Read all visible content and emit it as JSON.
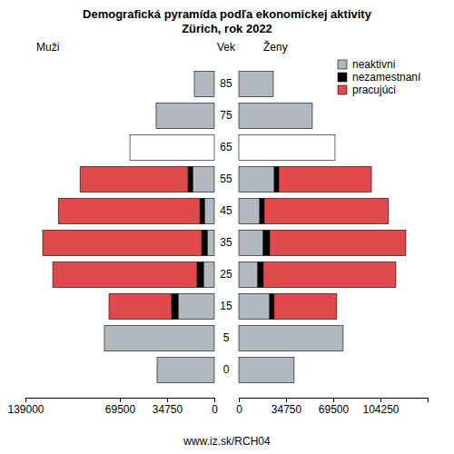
{
  "chart_data": {
    "type": "bar",
    "orientation": "horizontal",
    "stacked": true,
    "title": "Demografická pyramída podľa ekonomickej aktivity",
    "subtitle": "Zürich, rok 2022",
    "y_label": "Vek",
    "left_label": "Muži",
    "right_label": "Ženy",
    "footer": "www.iz.sk/RCH04",
    "legend": "top-right",
    "categories": [
      "0",
      "5",
      "15",
      "25",
      "35",
      "45",
      "55",
      "65",
      "75",
      "85"
    ],
    "series": [
      {
        "name": "neaktivni",
        "color": "#b1b8c0",
        "men": [
          42100,
          80900,
          26700,
          8000,
          5300,
          7300,
          16000,
          null,
          42800,
          14700
        ],
        "women": [
          40700,
          76800,
          22700,
          14000,
          18000,
          15400,
          26100,
          null,
          54100,
          25400
        ]
      },
      {
        "name": "nezamestnaní",
        "color": "#000000",
        "men": [
          null,
          null,
          4700,
          4700,
          4000,
          3300,
          3300,
          null,
          null,
          null
        ],
        "women": [
          null,
          null,
          3300,
          4000,
          4700,
          3300,
          3300,
          null,
          null,
          null
        ]
      },
      {
        "name": "pracujúci",
        "color": "#e04a4c",
        "men": [
          null,
          null,
          46100,
          106200,
          117000,
          104200,
          79500,
          null,
          null,
          null
        ],
        "women": [
          null,
          null,
          46100,
          97600,
          100200,
          91500,
          68200,
          null,
          null,
          null
        ]
      }
    ],
    "totals": {
      "color": "#ffffff",
      "men": [
        null,
        null,
        null,
        null,
        null,
        null,
        null,
        62100,
        null,
        null
      ],
      "women": [
        null,
        null,
        null,
        null,
        null,
        null,
        null,
        70800,
        null,
        null
      ]
    },
    "xlim_men": [
      0,
      139000
    ],
    "xticks_men": [
      139000,
      69500,
      34750,
      0
    ],
    "xlim_women": [
      0,
      139000
    ],
    "xticks_women": [
      0,
      34750,
      69500,
      104250
    ]
  }
}
